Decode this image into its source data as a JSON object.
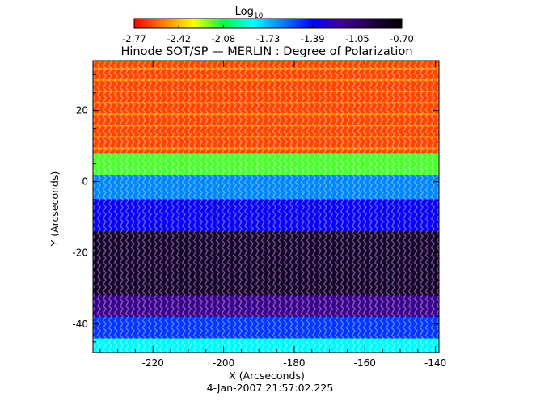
{
  "chart_data": {
    "type": "heatmap",
    "title": "Hinode SOT/SP — MERLIN : Degree of Polarization",
    "xlabel": "X (Arcseconds)",
    "ylabel": "Y (Arcseconds)",
    "timestamp": "4-Jan-2007 21:57:02.225",
    "colorbar": {
      "label_base": "Log",
      "label_sub": "10",
      "min": -2.77,
      "max": -0.7,
      "ticks": [
        "-2.77",
        "-2.42",
        "-2.08",
        "-1.73",
        "-1.39",
        "-1.05",
        "-0.70"
      ],
      "colormap": [
        "#ff0000",
        "#ff8000",
        "#ffff00",
        "#00ff40",
        "#00ffff",
        "#0080ff",
        "#0000ff",
        "#4000a0",
        "#200040",
        "#000000"
      ]
    },
    "xlim": [
      -237,
      -139
    ],
    "ylim": [
      -48,
      34
    ],
    "x_ticks": [
      -220,
      -200,
      -180,
      -160,
      -140
    ],
    "y_ticks": [
      20,
      0,
      -20,
      -40
    ],
    "bands": [
      {
        "y0": 34,
        "y1": 8,
        "v": 0.06,
        "pattern": "red-speckled"
      },
      {
        "y0": 8,
        "y1": 2,
        "v": 0.3
      },
      {
        "y0": 2,
        "y1": -5,
        "v": 0.55
      },
      {
        "y0": -5,
        "y1": -14,
        "v": 0.68
      },
      {
        "y0": -14,
        "y1": -32,
        "v": 0.92
      },
      {
        "y0": -32,
        "y1": -38,
        "v": 0.8
      },
      {
        "y0": -38,
        "y1": -44,
        "v": 0.62
      },
      {
        "y0": -44,
        "y1": -48,
        "v": 0.45
      }
    ]
  }
}
